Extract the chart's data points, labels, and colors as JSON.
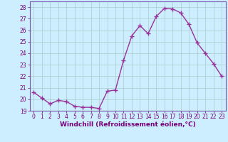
{
  "x": [
    0,
    1,
    2,
    3,
    4,
    5,
    6,
    7,
    8,
    9,
    10,
    11,
    12,
    13,
    14,
    15,
    16,
    17,
    18,
    19,
    20,
    21,
    22,
    23
  ],
  "y": [
    20.6,
    20.1,
    19.6,
    19.9,
    19.8,
    19.4,
    19.3,
    19.3,
    19.2,
    20.7,
    20.8,
    23.4,
    25.5,
    26.4,
    25.7,
    27.2,
    27.9,
    27.85,
    27.5,
    26.5,
    24.9,
    24.0,
    23.1,
    22.0
  ],
  "line_color": "#993399",
  "marker": "+",
  "markersize": 4,
  "linewidth": 1.0,
  "markeredgewidth": 1.0,
  "xlabel": "Windchill (Refroidissement éolien,°C)",
  "xlabel_fontsize": 6.5,
  "bg_color": "#cceeff",
  "grid_color": "#aacccc",
  "ylim": [
    19,
    28.5
  ],
  "xlim": [
    -0.5,
    23.5
  ],
  "yticks": [
    19,
    20,
    21,
    22,
    23,
    24,
    25,
    26,
    27,
    28
  ],
  "xticks": [
    0,
    1,
    2,
    3,
    4,
    5,
    6,
    7,
    8,
    9,
    10,
    11,
    12,
    13,
    14,
    15,
    16,
    17,
    18,
    19,
    20,
    21,
    22,
    23
  ],
  "tick_fontsize": 5.5,
  "label_color": "#770077",
  "spine_color": "#7755aa"
}
